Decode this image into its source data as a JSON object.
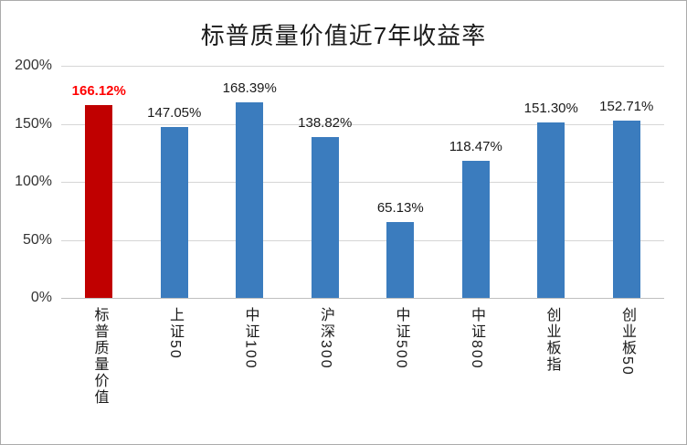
{
  "title": "标普质量价值近7年收益率",
  "colors": {
    "highlight_bar": "#c00000",
    "bar": "#3b7cbe",
    "highlight_label": "#ff0000",
    "gridline": "#d6d6d6"
  },
  "chart_data": {
    "type": "bar",
    "title": "标普质量价值近7年收益率",
    "categories": [
      "标普质量价值",
      "上证50",
      "中证100",
      "沪深300",
      "中证500",
      "中证800",
      "创业板指",
      "创业板50"
    ],
    "values": [
      166.12,
      147.05,
      168.39,
      138.82,
      65.13,
      118.47,
      151.3,
      152.71
    ],
    "labels": [
      "166.12%",
      "147.05%",
      "168.39%",
      "138.82%",
      "65.13%",
      "118.47%",
      "151.30%",
      "152.71%"
    ],
    "highlight_index": 0,
    "xlabel": "",
    "ylabel": "",
    "ylim": [
      0,
      200
    ],
    "yticks": [
      "200%",
      "150%",
      "100%",
      "50%",
      "0%"
    ],
    "grid": true,
    "legend": "none"
  }
}
